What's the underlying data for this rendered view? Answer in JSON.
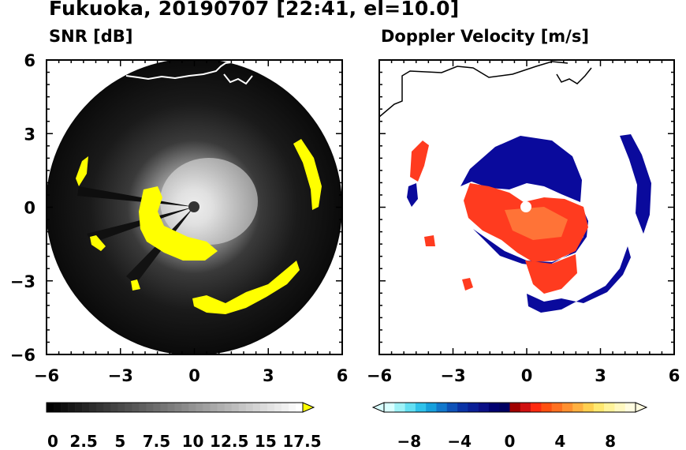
{
  "title": "Fukuoka, 20190707 [22:41, el=10.0]",
  "chart_data": [
    {
      "type": "heatmap",
      "panel": "SNR",
      "title": "SNR [dB]",
      "xlim": [
        -6,
        6
      ],
      "ylim": [
        -6,
        6
      ],
      "xticks": [
        -6,
        -3,
        0,
        3,
        6
      ],
      "yticks": [
        -6,
        -3,
        0,
        3,
        6
      ],
      "xtick_labels": [
        "−6",
        "−3",
        "0",
        "3",
        "6"
      ],
      "ytick_labels": [
        "6",
        "3",
        "0",
        "−3",
        "−6"
      ],
      "range_ring_radius_km": 6,
      "colorbar": {
        "min": 0,
        "max": 18,
        "extend": "max",
        "extend_color": "#ffff00",
        "tick_values": [
          0,
          2.5,
          5,
          7.5,
          10,
          12.5,
          15,
          17.5
        ],
        "tick_labels": [
          "0",
          "2.5",
          "5",
          "7.5",
          "10",
          "12.5",
          "15",
          "17.5"
        ],
        "colors_start": "#000000",
        "colors_end": "#ffffff"
      }
    },
    {
      "type": "heatmap",
      "panel": "Doppler",
      "title": "Doppler Velocity [m/s]",
      "xlim": [
        -6,
        6
      ],
      "ylim": [
        -6,
        6
      ],
      "xticks": [
        -6,
        -3,
        0,
        3,
        6
      ],
      "yticks": [
        -6,
        -3,
        0,
        3,
        6
      ],
      "xtick_labels": [
        "−6",
        "−3",
        "0",
        "3",
        "6"
      ],
      "colorbar": {
        "min": -10,
        "max": 10,
        "extend": "both",
        "tick_values": [
          -8,
          -4,
          0,
          4,
          8
        ],
        "tick_labels": [
          "−8",
          "−4",
          "0",
          "4",
          "8"
        ],
        "negative_color": "#0a0a9c",
        "positive_color": "#ff3b1f"
      }
    }
  ]
}
